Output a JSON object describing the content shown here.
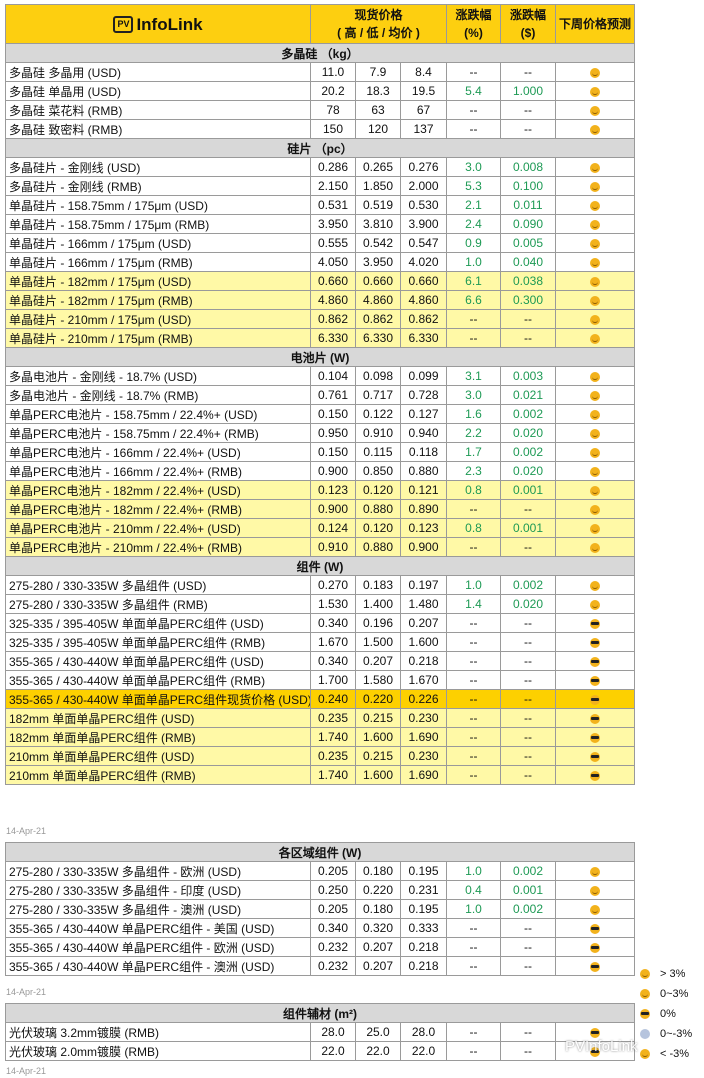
{
  "header": {
    "logo_pv": "PV",
    "logo_text": "InfoLink",
    "price_l1": "现货价格",
    "price_l2": "( 高 / 低 / 均价 )",
    "pct_l1": "涨跌幅",
    "pct_l2": "(%)",
    "usd_l1": "涨跌幅",
    "usd_l2": "($)",
    "forecast": "下周价格预测"
  },
  "colors": {
    "header": "#fdcf10",
    "section": "#d8d8d8",
    "highlight": "#fff9a6",
    "highlight_strong": "#fdd000",
    "up": "#1e9a55"
  },
  "tables": [
    {
      "sections": [
        {
          "title": "多晶硅 （kg）",
          "rows": [
            {
              "name": "多晶硅 多晶用 (USD)",
              "v": [
                "11.0",
                "7.9",
                "8.4",
                "--",
                "--"
              ],
              "f": "smile"
            },
            {
              "name": "多晶硅 单晶用 (USD)",
              "v": [
                "20.2",
                "18.3",
                "19.5",
                "5.4",
                "1.000"
              ],
              "f": "smile"
            },
            {
              "name": "多晶硅 菜花料 (RMB)",
              "v": [
                "78",
                "63",
                "67",
                "--",
                "--"
              ],
              "f": "smile"
            },
            {
              "name": "多晶硅 致密料 (RMB)",
              "v": [
                "150",
                "120",
                "137",
                "--",
                "--"
              ],
              "f": "smile"
            }
          ]
        },
        {
          "title": "硅片 （pc）",
          "rows": [
            {
              "name": "多晶硅片 - 金刚线 (USD)",
              "v": [
                "0.286",
                "0.265",
                "0.276",
                "3.0",
                "0.008"
              ],
              "f": "smile"
            },
            {
              "name": "多晶硅片 - 金刚线 (RMB)",
              "v": [
                "2.150",
                "1.850",
                "2.000",
                "5.3",
                "0.100"
              ],
              "f": "smile"
            },
            {
              "name": "单晶硅片 - 158.75mm / 175μm (USD)",
              "v": [
                "0.531",
                "0.519",
                "0.530",
                "2.1",
                "0.011"
              ],
              "f": "smile"
            },
            {
              "name": "单晶硅片 - 158.75mm / 175μm (RMB)",
              "v": [
                "3.950",
                "3.810",
                "3.900",
                "2.4",
                "0.090"
              ],
              "f": "smile"
            },
            {
              "name": "单晶硅片 - 166mm / 175μm (USD)",
              "v": [
                "0.555",
                "0.542",
                "0.547",
                "0.9",
                "0.005"
              ],
              "f": "smile"
            },
            {
              "name": "单晶硅片 - 166mm / 175μm (RMB)",
              "v": [
                "4.050",
                "3.950",
                "4.020",
                "1.0",
                "0.040"
              ],
              "f": "smile"
            },
            {
              "name": "单晶硅片 - 182mm / 175μm (USD)",
              "v": [
                "0.660",
                "0.660",
                "0.660",
                "6.1",
                "0.038"
              ],
              "f": "smile",
              "hl": 1
            },
            {
              "name": "单晶硅片 - 182mm / 175μm (RMB)",
              "v": [
                "4.860",
                "4.860",
                "4.860",
                "6.6",
                "0.300"
              ],
              "f": "smile",
              "hl": 1
            },
            {
              "name": "单晶硅片 - 210mm / 175μm (USD)",
              "v": [
                "0.862",
                "0.862",
                "0.862",
                "--",
                "--"
              ],
              "f": "smile",
              "hl": 1
            },
            {
              "name": "单晶硅片 - 210mm / 175μm (RMB)",
              "v": [
                "6.330",
                "6.330",
                "6.330",
                "--",
                "--"
              ],
              "f": "smile",
              "hl": 1
            }
          ]
        },
        {
          "title": "电池片 (W)",
          "rows": [
            {
              "name": "多晶电池片 - 金刚线 - 18.7% (USD)",
              "v": [
                "0.104",
                "0.098",
                "0.099",
                "3.1",
                "0.003"
              ],
              "f": "smile"
            },
            {
              "name": "多晶电池片 - 金刚线 - 18.7% (RMB)",
              "v": [
                "0.761",
                "0.717",
                "0.728",
                "3.0",
                "0.021"
              ],
              "f": "smile"
            },
            {
              "name": "单晶PERC电池片 - 158.75mm / 22.4%+ (USD)",
              "v": [
                "0.150",
                "0.122",
                "0.127",
                "1.6",
                "0.002"
              ],
              "f": "smile"
            },
            {
              "name": "单晶PERC电池片 - 158.75mm / 22.4%+ (RMB)",
              "v": [
                "0.950",
                "0.910",
                "0.940",
                "2.2",
                "0.020"
              ],
              "f": "smile"
            },
            {
              "name": "单晶PERC电池片 - 166mm / 22.4%+ (USD)",
              "v": [
                "0.150",
                "0.115",
                "0.118",
                "1.7",
                "0.002"
              ],
              "f": "smile"
            },
            {
              "name": "单晶PERC电池片 - 166mm / 22.4%+ (RMB)",
              "v": [
                "0.900",
                "0.850",
                "0.880",
                "2.3",
                "0.020"
              ],
              "f": "smile"
            },
            {
              "name": "单晶PERC电池片 - 182mm / 22.4%+ (USD)",
              "v": [
                "0.123",
                "0.120",
                "0.121",
                "0.8",
                "0.001"
              ],
              "f": "smile",
              "hl": 1
            },
            {
              "name": "单晶PERC电池片 - 182mm / 22.4%+ (RMB)",
              "v": [
                "0.900",
                "0.880",
                "0.890",
                "--",
                "--"
              ],
              "f": "smile",
              "hl": 1
            },
            {
              "name": "单晶PERC电池片 - 210mm / 22.4%+ (USD)",
              "v": [
                "0.124",
                "0.120",
                "0.123",
                "0.8",
                "0.001"
              ],
              "f": "smile",
              "hl": 1
            },
            {
              "name": "单晶PERC电池片 - 210mm / 22.4%+ (RMB)",
              "v": [
                "0.910",
                "0.880",
                "0.900",
                "--",
                "--"
              ],
              "f": "smile",
              "hl": 1
            }
          ]
        },
        {
          "title": "组件 (W)",
          "rows": [
            {
              "name": "275-280 / 330-335W 多晶组件 (USD)",
              "v": [
                "0.270",
                "0.183",
                "0.197",
                "1.0",
                "0.002"
              ],
              "f": "smile"
            },
            {
              "name": "275-280 / 330-335W 多晶组件 (RMB)",
              "v": [
                "1.530",
                "1.400",
                "1.480",
                "1.4",
                "0.020"
              ],
              "f": "smile"
            },
            {
              "name": "325-335 / 395-405W 单面单晶PERC组件 (USD)",
              "v": [
                "0.340",
                "0.196",
                "0.207",
                "--",
                "--"
              ],
              "f": "cool"
            },
            {
              "name": "325-335 / 395-405W 单面单晶PERC组件 (RMB)",
              "v": [
                "1.670",
                "1.500",
                "1.600",
                "--",
                "--"
              ],
              "f": "cool"
            },
            {
              "name": "355-365 / 430-440W 单面单晶PERC组件 (USD)",
              "v": [
                "0.340",
                "0.207",
                "0.218",
                "--",
                "--"
              ],
              "f": "cool"
            },
            {
              "name": "355-365 / 430-440W 单面单晶PERC组件 (RMB)",
              "v": [
                "1.700",
                "1.580",
                "1.670",
                "--",
                "--"
              ],
              "f": "cool"
            },
            {
              "name": "355-365 / 430-440W 单面单晶PERC组件现货价格 (USD)",
              "v": [
                "0.240",
                "0.220",
                "0.226",
                "--",
                "--"
              ],
              "f": "cool",
              "hl": 2
            },
            {
              "name": "182mm 单面单晶PERC组件 (USD)",
              "v": [
                "0.235",
                "0.215",
                "0.230",
                "--",
                "--"
              ],
              "f": "cool",
              "hl": 1
            },
            {
              "name": "182mm 单面单晶PERC组件 (RMB)",
              "v": [
                "1.740",
                "1.600",
                "1.690",
                "--",
                "--"
              ],
              "f": "cool",
              "hl": 1
            },
            {
              "name": "210mm 单面单晶PERC组件 (USD)",
              "v": [
                "0.235",
                "0.215",
                "0.230",
                "--",
                "--"
              ],
              "f": "cool",
              "hl": 1
            },
            {
              "name": "210mm 单面单晶PERC组件 (RMB)",
              "v": [
                "1.740",
                "1.600",
                "1.690",
                "--",
                "--"
              ],
              "f": "cool",
              "hl": 1
            }
          ]
        }
      ],
      "date": "14-Apr-21"
    },
    {
      "sections": [
        {
          "title": "各区域组件 (W)",
          "rows": [
            {
              "name": "275-280 / 330-335W  多晶组件 - 欧洲 (USD)",
              "v": [
                "0.205",
                "0.180",
                "0.195",
                "1.0",
                "0.002"
              ],
              "f": "smile"
            },
            {
              "name": "275-280 / 330-335W  多晶组件 - 印度 (USD)",
              "v": [
                "0.250",
                "0.220",
                "0.231",
                "0.4",
                "0.001"
              ],
              "f": "smile"
            },
            {
              "name": "275-280 / 330-335W  多晶组件 - 澳洲 (USD)",
              "v": [
                "0.205",
                "0.180",
                "0.195",
                "1.0",
                "0.002"
              ],
              "f": "smile"
            },
            {
              "name": "355-365 / 430-440W 单晶PERC组件 - 美国 (USD)",
              "v": [
                "0.340",
                "0.320",
                "0.333",
                "--",
                "--"
              ],
              "f": "cool"
            },
            {
              "name": "355-365 / 430-440W 单晶PERC组件 - 欧洲 (USD)",
              "v": [
                "0.232",
                "0.207",
                "0.218",
                "--",
                "--"
              ],
              "f": "cool"
            },
            {
              "name": "355-365 / 430-440W 单晶PERC组件 - 澳洲 (USD)",
              "v": [
                "0.232",
                "0.207",
                "0.218",
                "--",
                "--"
              ],
              "f": "cool"
            }
          ]
        }
      ],
      "date": "14-Apr-21"
    },
    {
      "sections": [
        {
          "title": "组件辅材 (m²)",
          "rows": [
            {
              "name": "光伏玻璃 3.2mm镀膜 (RMB)",
              "v": [
                "28.0",
                "25.0",
                "28.0",
                "--",
                "--"
              ],
              "f": "cool"
            },
            {
              "name": "光伏玻璃 2.0mm镀膜 (RMB)",
              "v": [
                "22.0",
                "22.0",
                "22.0",
                "--",
                "--"
              ],
              "f": "cool"
            }
          ]
        }
      ],
      "date": "14-Apr-21"
    }
  ],
  "legend": [
    {
      "icon": "grin",
      "label": "> 3%"
    },
    {
      "icon": "smile",
      "label": "0~3%"
    },
    {
      "icon": "cool",
      "label": "0%"
    },
    {
      "icon": "shock",
      "label": "0~-3%"
    },
    {
      "icon": "sad",
      "label": "< -3%"
    }
  ],
  "watermark": "PVInfoLink"
}
